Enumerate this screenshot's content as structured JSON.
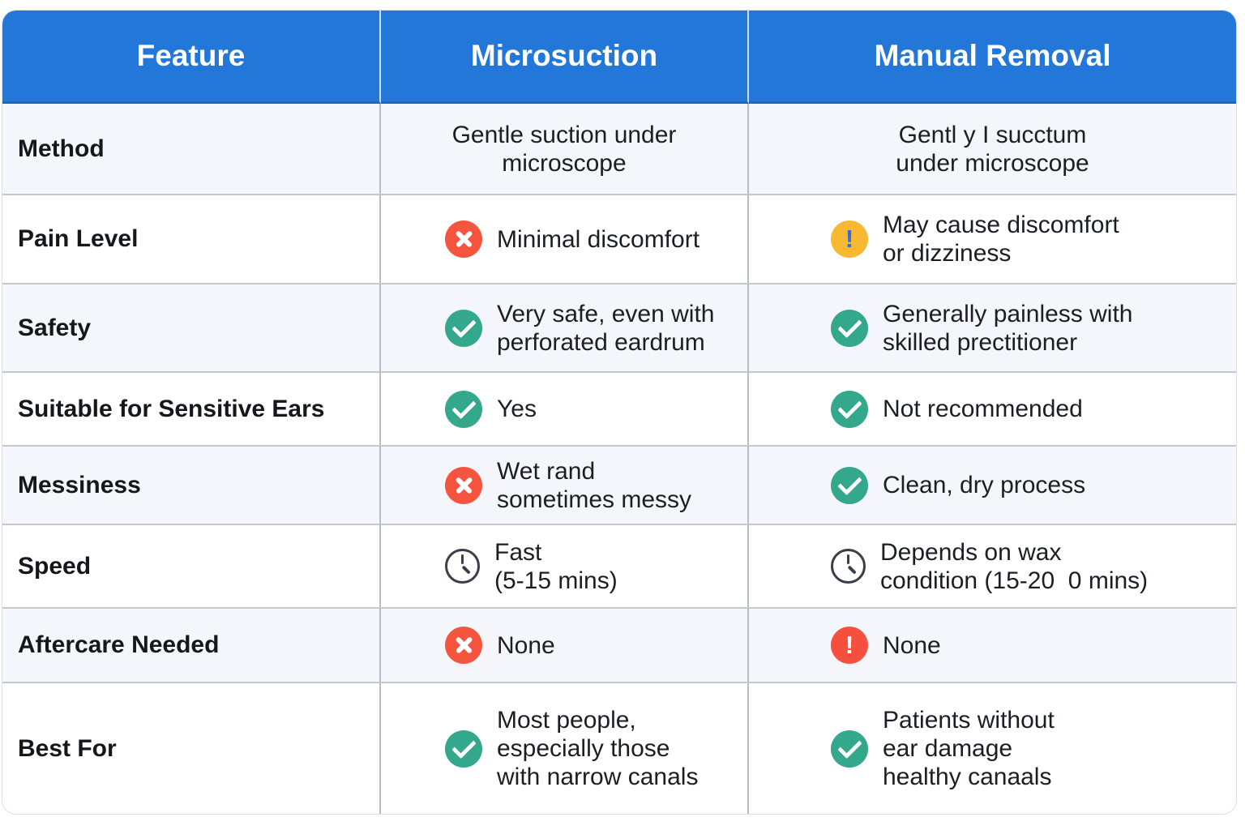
{
  "chart_data": {
    "type": "table",
    "title": "Microsuction vs Manual Removal comparison table",
    "columns": [
      "Feature",
      "Microsuction",
      "Manual Removal"
    ],
    "rows": [
      {
        "feature": "Method",
        "micro": {
          "icon": "",
          "text": "Gentle suction under\nmicroscope"
        },
        "manual": {
          "icon": "",
          "text": "Gentl y I succtum\nunder microscope"
        }
      },
      {
        "feature": "Pain Level",
        "micro": {
          "icon": "cross",
          "text": "Minimal discomfort"
        },
        "manual": {
          "icon": "warning",
          "text": "May cause discomfort\nor dizziness"
        }
      },
      {
        "feature": "Safety",
        "micro": {
          "icon": "check",
          "text": "Very safe, even with\nperforated eardrum"
        },
        "manual": {
          "icon": "check",
          "text": "Generally painless with\nskilled prectitioner"
        }
      },
      {
        "feature": "Suitable for Sensitive Ears",
        "micro": {
          "icon": "check",
          "text": "Yes"
        },
        "manual": {
          "icon": "check",
          "text": "Not recommended"
        }
      },
      {
        "feature": "Messiness",
        "micro": {
          "icon": "cross",
          "text": "Wet rand\nsometimes messy"
        },
        "manual": {
          "icon": "check",
          "text": "Clean, dry process"
        }
      },
      {
        "feature": "Speed",
        "micro": {
          "icon": "clock",
          "text": "Fast\n(5-15 mins)"
        },
        "manual": {
          "icon": "clock",
          "text": "Depends on wax\ncondition (15-20  0 mins)"
        }
      },
      {
        "feature": "Aftercare Needed",
        "micro": {
          "icon": "cross",
          "text": "None"
        },
        "manual": {
          "icon": "alert",
          "text": "None"
        }
      },
      {
        "feature": "Best For",
        "micro": {
          "icon": "check",
          "text": "Most people,\nespecially those\nwith narrow canals"
        },
        "manual": {
          "icon": "check",
          "text": "Patients without\near damage\nhealthy canaals"
        }
      }
    ]
  },
  "colors": {
    "header_bg": "#2277d8",
    "header_text": "#ffffff",
    "row_alt_bg": "#f5f6fb",
    "row_bg": "#ffffff",
    "check_green": "#33a88c",
    "cross_red": "#f5543f",
    "warning_yellow": "#f8b832",
    "warning_mark": "#2e6fd0",
    "alert_red": "#f5503e",
    "clock_dark": "#393e48",
    "h_line": "#c2c8d0",
    "v_line": "#b6bcc8",
    "text": "#1b1e24"
  }
}
